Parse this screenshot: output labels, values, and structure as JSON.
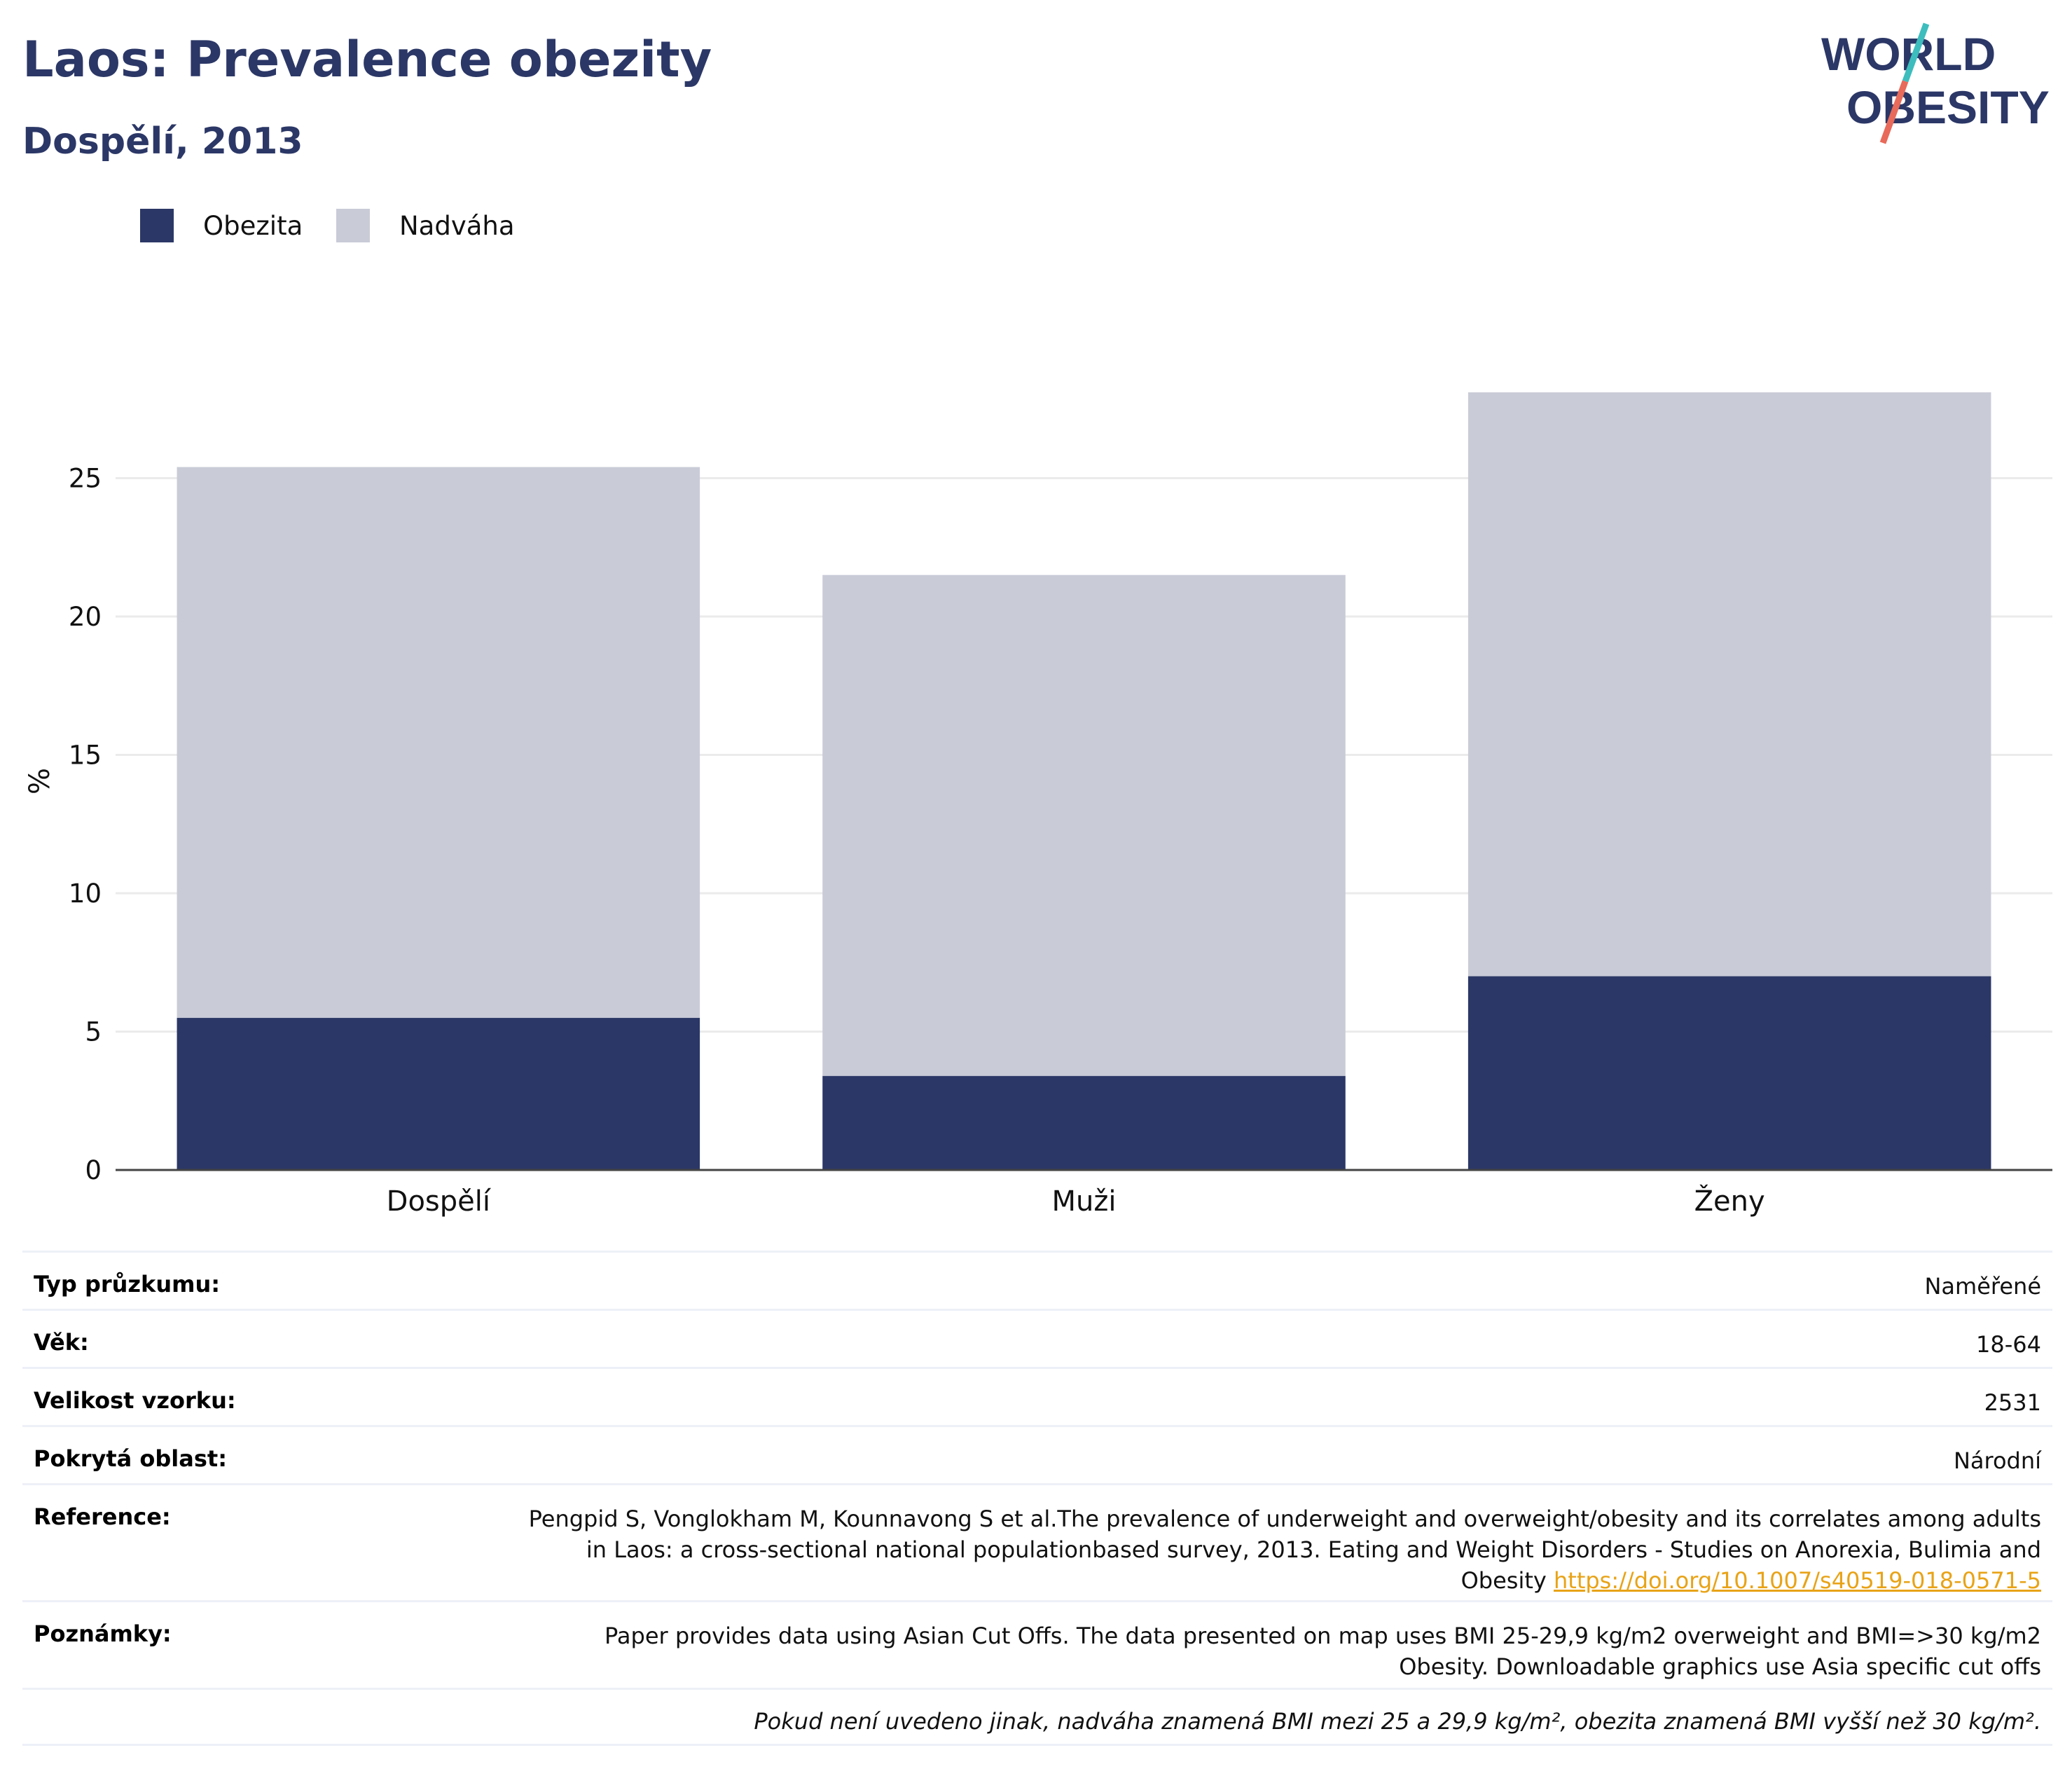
{
  "header": {
    "title": "Laos: Prevalence obezity",
    "subtitle": "Dospělí, 2013",
    "logo_line1": "WORLD",
    "logo_line2": "OBESITY"
  },
  "colors": {
    "obesity": "#2b3766",
    "overweight": "#c9cbd7",
    "title": "#2b3766",
    "link": "#e8a317",
    "logo_teal": "#3dbdbd",
    "logo_coral": "#e86a5a"
  },
  "chart_data": {
    "type": "bar",
    "stacked": true,
    "categories": [
      "Dospělí",
      "Muži",
      "Ženy"
    ],
    "series": [
      {
        "name": "Obezita",
        "values": [
          5.5,
          3.4,
          7.0
        ]
      },
      {
        "name": "Nadváha",
        "values": [
          19.9,
          18.1,
          21.1
        ]
      }
    ],
    "ylabel": "%",
    "ylim": [
      0,
      28.1
    ],
    "yticks": [
      0,
      5,
      10,
      15,
      20,
      25
    ],
    "grid": true,
    "legend_position": "top-left"
  },
  "info_rows": [
    {
      "label": "Typ průzkumu:",
      "value": "Naměřené"
    },
    {
      "label": "Věk:",
      "value": "18-64"
    },
    {
      "label": "Velikost vzorku:",
      "value": "2531"
    },
    {
      "label": "Pokrytá oblast:",
      "value": "Národní"
    }
  ],
  "reference": {
    "label": "Reference:",
    "line1": "Pengpid S, Vonglokham M, Kounnavong S et al.The prevalence of underweight and overweight/obesity and its correlates among adults",
    "line2": "in Laos: a cross-sectional national populationbased survey, 2013. Eating and Weight Disorders - Studies on Anorexia, Bulimia and",
    "line3_text": "Obesity",
    "link": "https://doi.org/10.1007/s40519-018-0571-5"
  },
  "notes": {
    "label": "Poznámky:",
    "line1": "Paper provides data using Asian Cut Offs. The data presented on map uses BMI 25-29,9 kg/m2 overweight and BMI=>30 kg/m2",
    "line2": "Obesity. Downloadable graphics use Asia specific cut offs"
  },
  "footnote": "Pokud není uvedeno jinak, nadváha znamená BMI mezi 25 a 29,9 kg/m², obezita znamená BMI vyšší než 30 kg/m²."
}
